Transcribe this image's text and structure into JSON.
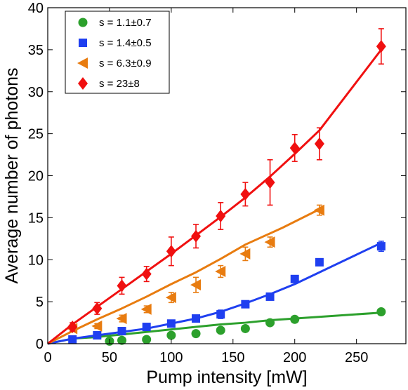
{
  "chart_data": {
    "type": "scatter",
    "title": "",
    "xlabel": "Pump intensity [mW]",
    "ylabel": "Average number of photons",
    "xlim": [
      0,
      290
    ],
    "ylim": [
      0,
      40
    ],
    "xticks": [
      0,
      50,
      100,
      150,
      200,
      250
    ],
    "yticks": [
      0,
      5,
      10,
      15,
      20,
      25,
      30,
      35,
      40
    ],
    "grid": false,
    "legend_position": "top-left",
    "series": [
      {
        "name": "s = 1.1±0.7",
        "color": "#2ca02c",
        "marker": "circle",
        "x": [
          50,
          60,
          80,
          100,
          120,
          140,
          160,
          180,
          200,
          270
        ],
        "y": [
          0.3,
          0.4,
          0.5,
          1.0,
          1.2,
          1.6,
          1.8,
          2.5,
          2.9,
          3.8
        ],
        "yerr": [
          0,
          0,
          0,
          0,
          0,
          0,
          0,
          0,
          0,
          0
        ],
        "fit_y": [
          0.0,
          0.6,
          0.8,
          1.1,
          1.4,
          1.7,
          2.0,
          2.3,
          2.5,
          2.8,
          3.7
        ]
      },
      {
        "name": "s = 1.4±0.5",
        "color": "#1f3ff0",
        "marker": "square",
        "x": [
          20,
          40,
          60,
          80,
          100,
          120,
          140,
          160,
          180,
          200,
          220,
          270
        ],
        "y": [
          0.5,
          1.0,
          1.5,
          2.0,
          2.4,
          3.0,
          3.5,
          4.7,
          5.6,
          7.7,
          9.7,
          11.6
        ],
        "yerr": [
          0,
          0,
          0,
          0,
          0,
          0.3,
          0.5,
          0.4,
          0.4,
          0,
          0,
          0.6
        ],
        "fit_y": [
          0.0,
          0.6,
          1.0,
          1.4,
          1.8,
          2.4,
          3.0,
          3.8,
          4.8,
          5.9,
          7.1,
          8.5,
          12.0
        ]
      },
      {
        "name": "s = 6.3±0.9",
        "color": "#e87c10",
        "marker": "triangle-left",
        "x": [
          20,
          40,
          60,
          80,
          100,
          120,
          140,
          160,
          180,
          220
        ],
        "y": [
          1.8,
          2.1,
          3.0,
          4.1,
          5.5,
          7.0,
          8.6,
          10.7,
          12.1,
          15.9
        ],
        "yerr": [
          0,
          0.3,
          0.4,
          0.4,
          0.6,
          0.9,
          0.7,
          0.8,
          0.6,
          0.6
        ],
        "fit_y": [
          0.0,
          1.5,
          2.9,
          4.2,
          5.6,
          7.1,
          8.5,
          10.1,
          11.8,
          13.8,
          16.0
        ]
      },
      {
        "name": "s = 23±8",
        "color": "#f01010",
        "marker": "diamond",
        "x": [
          20,
          40,
          60,
          80,
          100,
          120,
          140,
          160,
          180,
          200,
          220,
          270
        ],
        "y": [
          2.0,
          4.2,
          6.9,
          8.3,
          11.0,
          12.8,
          15.2,
          17.8,
          19.2,
          23.3,
          23.8,
          35.4
        ],
        "yerr": [
          0.5,
          0.7,
          1.0,
          0.9,
          1.7,
          1.4,
          1.6,
          1.4,
          2.7,
          1.6,
          1.9,
          2.1
        ],
        "fit_y": [
          0.0,
          2.3,
          4.4,
          6.5,
          8.6,
          10.7,
          12.9,
          15.1,
          17.4,
          19.9,
          22.6,
          25.4,
          35.0
        ]
      }
    ],
    "fit_x_blue": [
      0,
      20,
      40,
      60,
      80,
      100,
      120,
      140,
      160,
      180,
      200,
      220,
      270
    ],
    "fit_x_orange": [
      0,
      20,
      40,
      60,
      80,
      100,
      120,
      140,
      160,
      190,
      220
    ],
    "fit_x_green": [
      0,
      20,
      40,
      60,
      80,
      100,
      120,
      140,
      160,
      180,
      270
    ],
    "fit_x_red": [
      0,
      20,
      40,
      60,
      80,
      100,
      120,
      140,
      160,
      180,
      200,
      220,
      270
    ]
  }
}
